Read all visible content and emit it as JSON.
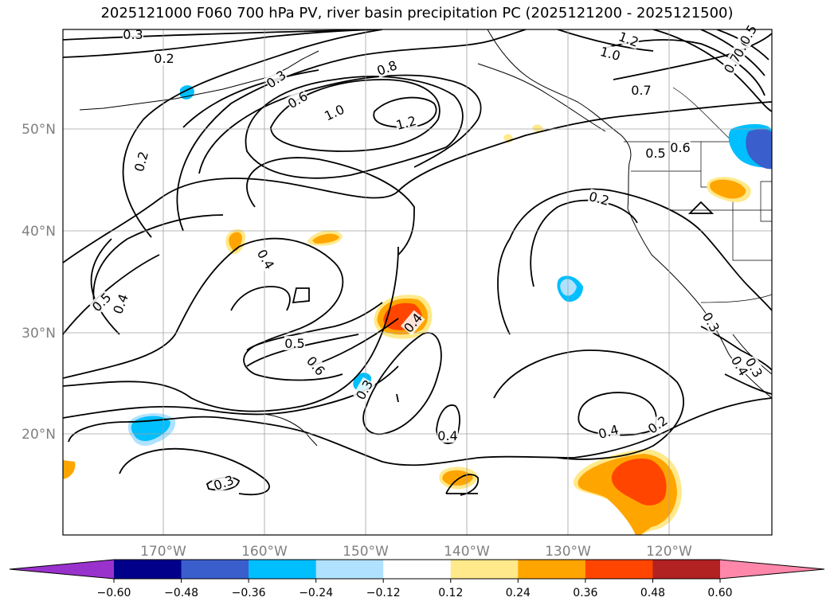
{
  "title": "2025121000 F060 700 hPa PV, river basin precipitation PC (2025121200 - 2025121500)",
  "map": {
    "lon_labels": [
      "170°W",
      "160°W",
      "150°W",
      "140°W",
      "130°W",
      "120°W"
    ],
    "lat_labels": [
      "50°N",
      "40°N",
      "30°N",
      "20°N"
    ],
    "gridline_color": "#a0a0a0",
    "label_color": "#808080",
    "contour_labels": [
      {
        "text": "0.3"
      },
      {
        "text": "0.2"
      },
      {
        "text": "0.3"
      },
      {
        "text": "0.6"
      },
      {
        "text": "0.8"
      },
      {
        "text": "1.0"
      },
      {
        "text": "1.2"
      },
      {
        "text": "1.2"
      },
      {
        "text": "1.0"
      },
      {
        "text": "0.7"
      },
      {
        "text": "0.5"
      },
      {
        "text": "0.6"
      },
      {
        "text": "0.7"
      },
      {
        "text": "0.6"
      },
      {
        "text": "0.5"
      },
      {
        "text": "0.2"
      },
      {
        "text": "0.2"
      },
      {
        "text": "0.4"
      },
      {
        "text": "0.5"
      },
      {
        "text": "0.4"
      },
      {
        "text": "0.5"
      },
      {
        "text": "0.6"
      },
      {
        "text": "0.4"
      },
      {
        "text": "0.3"
      },
      {
        "text": "0.4"
      },
      {
        "text": "0.4"
      },
      {
        "text": "0.2"
      },
      {
        "text": "0.3"
      },
      {
        "text": "0.3"
      },
      {
        "text": "0.4"
      },
      {
        "text": "0.3"
      }
    ]
  },
  "colorbar": {
    "colors": [
      "#9932cc",
      "#00008b",
      "#3a5fcd",
      "#00bfff",
      "#b0e2ff",
      "#ffffff",
      "#ffe98a",
      "#ffa500",
      "#ff4500",
      "#b22222",
      "#ff88aa"
    ],
    "tick_labels": [
      "−0.60",
      "−0.48",
      "−0.36",
      "−0.24",
      "−0.12",
      "0.12",
      "0.24",
      "0.36",
      "0.48",
      "0.60"
    ]
  }
}
